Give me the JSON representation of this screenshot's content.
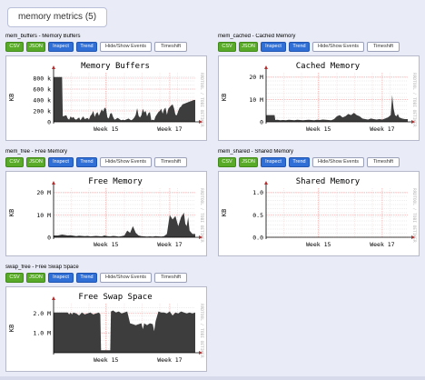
{
  "page": {
    "title": "memory metrics (5)"
  },
  "buttons": {
    "csv": "CSV",
    "json": "JSON",
    "inspect": "Inspect",
    "trend": "Trend",
    "events": "Hide/Show Events",
    "timeshift": "Timeshift"
  },
  "watermark": "RRDTOOL / TOBI OETIKER",
  "colors": {
    "area": "#3d3d3d",
    "csv_json": "#5aaa2a",
    "inspect_trend": "#2f6fd6",
    "grid": "#f0b0b0"
  },
  "panels": [
    {
      "label": "mem_buffers - Memory Buffers",
      "chart_data": {
        "type": "area",
        "title": "Memory Buffers",
        "ylabel": "KB",
        "yticks": [
          "800 k",
          "600 k",
          "400 k",
          "200 k",
          "0"
        ],
        "xticks": [
          "Week 15",
          "Week 17"
        ],
        "ylim": [
          0,
          900000
        ],
        "x": [
          0,
          3,
          6,
          6.5,
          9,
          10,
          11,
          12,
          13,
          14,
          15,
          16,
          17,
          18,
          19,
          20,
          21,
          22,
          23,
          24,
          25,
          26,
          27,
          28,
          29,
          30,
          31,
          32,
          33,
          34,
          35,
          36,
          37,
          38,
          39,
          40,
          41,
          42,
          43,
          44,
          45,
          46,
          47,
          48,
          49,
          50,
          51,
          52,
          53,
          54,
          55,
          56,
          57,
          58,
          59,
          60,
          61,
          62,
          63,
          64,
          65,
          66,
          67,
          68,
          69,
          70,
          71,
          72,
          73,
          74,
          75,
          76,
          77,
          78,
          79,
          80,
          81,
          82,
          83,
          84,
          85,
          86,
          87,
          88,
          89,
          90,
          91,
          92,
          93,
          94,
          95,
          96,
          97,
          98,
          99,
          100
        ],
        "values": [
          820000,
          820000,
          820000,
          100000,
          120000,
          60000,
          40000,
          100000,
          70000,
          90000,
          50000,
          40000,
          60000,
          80000,
          30000,
          70000,
          100000,
          50000,
          60000,
          70000,
          40000,
          110000,
          140000,
          200000,
          90000,
          150000,
          180000,
          110000,
          170000,
          230000,
          190000,
          260000,
          240000,
          80000,
          60000,
          150000,
          160000,
          90000,
          40000,
          50000,
          70000,
          60000,
          40000,
          30000,
          40000,
          30000,
          40000,
          50000,
          60000,
          40000,
          30000,
          50000,
          80000,
          130000,
          250000,
          110000,
          80000,
          120000,
          240000,
          170000,
          200000,
          100000,
          160000,
          180000,
          30000,
          40000,
          30000,
          100000,
          140000,
          180000,
          200000,
          240000,
          150000,
          230000,
          260000,
          130000,
          240000,
          270000,
          300000,
          320000,
          250000,
          130000,
          120000,
          200000,
          260000,
          280000,
          320000,
          330000,
          340000,
          350000,
          360000,
          370000,
          380000,
          390000,
          400000,
          400000
        ]
      }
    },
    {
      "label": "mem_cached - Cached Memory",
      "chart_data": {
        "type": "area",
        "title": "Cached Memory",
        "ylabel": "KB",
        "yticks": [
          "20 M",
          "10 M",
          "0"
        ],
        "xticks": [
          "Week 15",
          "Week 17"
        ],
        "ylim": [
          0,
          22000000
        ],
        "x": [
          0,
          3,
          6,
          6.5,
          8,
          10,
          12,
          14,
          16,
          18,
          20,
          22,
          24,
          26,
          28,
          30,
          32,
          34,
          36,
          38,
          40,
          42,
          44,
          46,
          48,
          50,
          52,
          54,
          56,
          58,
          60,
          62,
          64,
          66,
          68,
          70,
          72,
          74,
          76,
          78,
          80,
          82,
          84,
          86,
          88,
          89,
          90,
          91,
          92,
          93,
          94,
          96,
          98,
          100
        ],
        "values": [
          3000000,
          3000000,
          3000000,
          800000,
          900000,
          700000,
          800000,
          700000,
          900000,
          800000,
          700000,
          900000,
          800000,
          700000,
          800000,
          900000,
          800000,
          700000,
          900000,
          800000,
          1000000,
          900000,
          800000,
          700000,
          1200000,
          2500000,
          3000000,
          2000000,
          2500000,
          3500000,
          3000000,
          4000000,
          3000000,
          2500000,
          1500000,
          1200000,
          1000000,
          1500000,
          1200000,
          1000000,
          1200000,
          1000000,
          1500000,
          2000000,
          3000000,
          12000000,
          6000000,
          3000000,
          2500000,
          3500000,
          2000000,
          1500000,
          1200000,
          1200000
        ]
      }
    },
    {
      "label": "mem_free - Free Memory",
      "chart_data": {
        "type": "area",
        "title": "Free Memory",
        "ylabel": "KB",
        "yticks": [
          "20 M",
          "10 M",
          "0"
        ],
        "xticks": [
          "Week 15",
          "Week 17"
        ],
        "ylim": [
          0,
          22000000
        ],
        "x": [
          0,
          3,
          6,
          8,
          10,
          12,
          14,
          16,
          18,
          20,
          22,
          24,
          26,
          28,
          30,
          32,
          34,
          36,
          38,
          40,
          42,
          44,
          46,
          48,
          50,
          52,
          54,
          56,
          58,
          60,
          62,
          64,
          66,
          68,
          70,
          72,
          74,
          76,
          78,
          80,
          82,
          84,
          86,
          88,
          90,
          92,
          93,
          94,
          95,
          96,
          98,
          100
        ],
        "values": [
          800000,
          800000,
          1200000,
          1000000,
          800000,
          900000,
          700000,
          500000,
          700000,
          600000,
          500000,
          600000,
          400000,
          500000,
          600000,
          500000,
          400000,
          800000,
          500000,
          400000,
          600000,
          500000,
          300000,
          500000,
          800000,
          3000000,
          2000000,
          5000000,
          2000000,
          800000,
          500000,
          400000,
          300000,
          400000,
          300000,
          500000,
          400000,
          300000,
          500000,
          1500000,
          10000000,
          8000000,
          9500000,
          5000000,
          9000000,
          11000000,
          6000000,
          5000000,
          9000000,
          3000000,
          1500000,
          1500000
        ]
      }
    },
    {
      "label": "mem_shared - Shared Memory",
      "chart_data": {
        "type": "area",
        "title": "Shared Memory",
        "ylabel": "KB",
        "yticks": [
          "1.0",
          "0.5",
          "0.0"
        ],
        "xticks": [
          "Week 15",
          "Week 17"
        ],
        "ylim": [
          0,
          1.1
        ],
        "x": [
          0,
          100
        ],
        "values": [
          0,
          0
        ]
      }
    },
    {
      "label": "swap_free - Free Swap Space",
      "chart_data": {
        "type": "area",
        "title": "Free Swap Space",
        "ylabel": "KB",
        "yticks": [
          "2.0 M",
          "1.0 M"
        ],
        "xticks": [
          "Week 15",
          "Week 17"
        ],
        "ylim": [
          0,
          2500000
        ],
        "x": [
          0,
          10,
          11,
          12,
          13,
          14,
          16,
          18,
          20,
          22,
          24,
          26,
          28,
          30,
          32,
          33,
          33.5,
          40,
          40.5,
          42,
          44,
          46,
          48,
          50,
          52,
          54,
          56,
          58,
          60,
          62,
          63,
          64,
          66,
          68,
          70,
          71,
          72,
          74,
          76,
          78,
          80,
          82,
          84,
          86,
          88,
          90,
          92,
          94,
          96,
          98,
          100
        ],
        "values": [
          2050000,
          2050000,
          1950000,
          2050000,
          1950000,
          2050000,
          2000000,
          1900000,
          2050000,
          1950000,
          2000000,
          2050000,
          1950000,
          2000000,
          2050000,
          1950000,
          130000,
          130000,
          2100000,
          2150000,
          2050000,
          2100000,
          2000000,
          2050000,
          2100000,
          1500000,
          1450000,
          1400000,
          1450000,
          1500000,
          1200000,
          1500000,
          1400000,
          1500000,
          1450000,
          1100000,
          1600000,
          2100000,
          2050000,
          2050000,
          2000000,
          2100000,
          1900000,
          2050000,
          2000000,
          2100000,
          2050000,
          2000000,
          2050000,
          2000000,
          2050000
        ]
      }
    }
  ]
}
